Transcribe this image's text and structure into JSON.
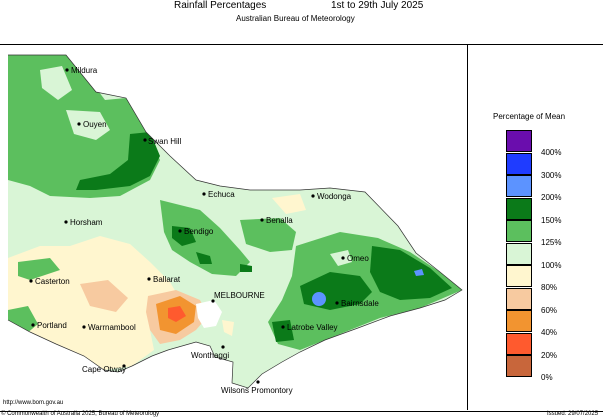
{
  "header": {
    "title": "Rainfall Percentages",
    "period": "1st to 29th July 2025",
    "subtitle": "Australian Bureau of Meteorology"
  },
  "legend": {
    "title": "Percentage of Mean",
    "items": [
      {
        "label": "400%",
        "color": "#6a0dad"
      },
      {
        "label": "300%",
        "color": "#1f3cff"
      },
      {
        "label": "200%",
        "color": "#5c93ff"
      },
      {
        "label": "150%",
        "color": "#0b7a19"
      },
      {
        "label": "125%",
        "color": "#5cbf5e"
      },
      {
        "label": "100%",
        "color": "#d9f5d6"
      },
      {
        "label": "80%",
        "color": "#fff6cf"
      },
      {
        "label": "60%",
        "color": "#f7caa0"
      },
      {
        "label": "40%",
        "color": "#f29430"
      },
      {
        "label": "20%",
        "color": "#ff5a2e"
      },
      {
        "label": "0%",
        "color": "#c8663b"
      }
    ]
  },
  "places": {
    "mildura": "Mildura",
    "ouyen": "Ouyen",
    "swan_hill": "Swan Hill",
    "echuca": "Echuca",
    "wodonga": "Wodonga",
    "horsham": "Horsham",
    "benalla": "Benalla",
    "bendigo": "Bendigo",
    "omeo": "Omeo",
    "casterton": "Casterton",
    "ballarat": "Ballarat",
    "melbourne": "MELBOURNE",
    "bairnsdale": "Bairnsdale",
    "portland": "Portland",
    "warrnambool": "Warrnambool",
    "latrobe_valley": "Latrobe Valley",
    "wonthaggi": "Wonthaggi",
    "cape_otway": "Cape Otway",
    "wilsons_promontory": "Wilsons Promontory"
  },
  "footer": {
    "url": "http://www.bom.gov.au",
    "copyright": "© Commonwealth of Australia 2025, Bureau of Meteorology",
    "issued": "Issued: 29/07/2025"
  }
}
